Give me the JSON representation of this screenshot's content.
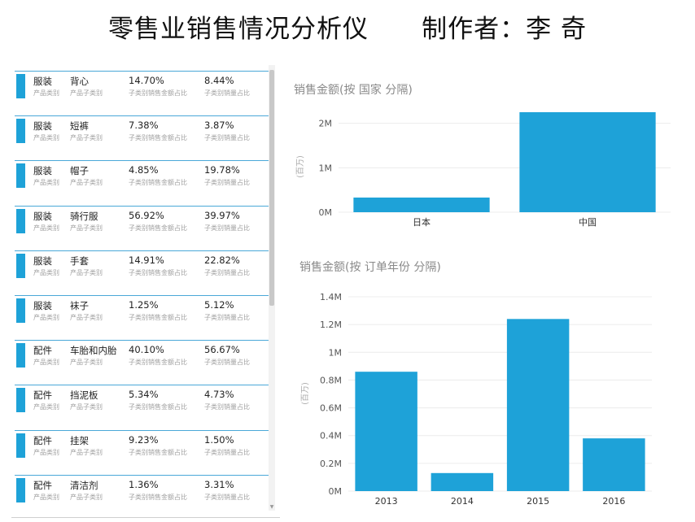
{
  "header": {
    "title": "零售业销售情况分析仪      制作者：李 奇"
  },
  "card_list": {
    "labels": {
      "category": "产品类别",
      "subcategory": "产品子类别",
      "amount_share": "子类别销售金额占比",
      "qty_share": "子类别销量占比"
    },
    "cards": [
      {
        "category": "服装",
        "subcategory": "背心",
        "amount_share": "14.70%",
        "qty_share": "8.44%"
      },
      {
        "category": "服装",
        "subcategory": "短裤",
        "amount_share": "7.38%",
        "qty_share": "3.87%"
      },
      {
        "category": "服装",
        "subcategory": "帽子",
        "amount_share": "4.85%",
        "qty_share": "19.78%"
      },
      {
        "category": "服装",
        "subcategory": "骑行服",
        "amount_share": "56.92%",
        "qty_share": "39.97%"
      },
      {
        "category": "服装",
        "subcategory": "手套",
        "amount_share": "14.91%",
        "qty_share": "22.82%"
      },
      {
        "category": "服装",
        "subcategory": "袜子",
        "amount_share": "1.25%",
        "qty_share": "5.12%"
      },
      {
        "category": "配件",
        "subcategory": "车胎和内胎",
        "amount_share": "40.10%",
        "qty_share": "56.67%"
      },
      {
        "category": "配件",
        "subcategory": "挡泥板",
        "amount_share": "5.34%",
        "qty_share": "4.73%"
      },
      {
        "category": "配件",
        "subcategory": "挂架",
        "amount_share": "9.23%",
        "qty_share": "1.50%"
      },
      {
        "category": "配件",
        "subcategory": "清洁剂",
        "amount_share": "1.36%",
        "qty_share": "3.31%"
      }
    ]
  },
  "chart_data": [
    {
      "type": "bar",
      "title": "销售金额(按 国家 分隔)",
      "ylabel": "(百万)",
      "categories": [
        "日本",
        "中国"
      ],
      "values": [
        0.33,
        2.25
      ],
      "ylim": [
        0,
        2.25
      ],
      "yticks": [
        0,
        1,
        2
      ],
      "ytick_labels": [
        "0M",
        "1M",
        "2M"
      ],
      "color": "#1ea2d8",
      "grid": true
    },
    {
      "type": "bar",
      "title": "销售金额(按 订单年份 分隔)",
      "ylabel": "(百万)",
      "categories": [
        "2013",
        "2014",
        "2015",
        "2016"
      ],
      "values": [
        0.86,
        0.13,
        1.24,
        0.38
      ],
      "ylim": [
        0,
        1.4
      ],
      "yticks": [
        0,
        0.2,
        0.4,
        0.6,
        0.8,
        1.0,
        1.2,
        1.4
      ],
      "ytick_labels": [
        "0M",
        "0.2M",
        "0.4M",
        "0.6M",
        "0.8M",
        "1M",
        "1.2M",
        "1.4M"
      ],
      "color": "#1ea2d8",
      "grid": true
    }
  ]
}
